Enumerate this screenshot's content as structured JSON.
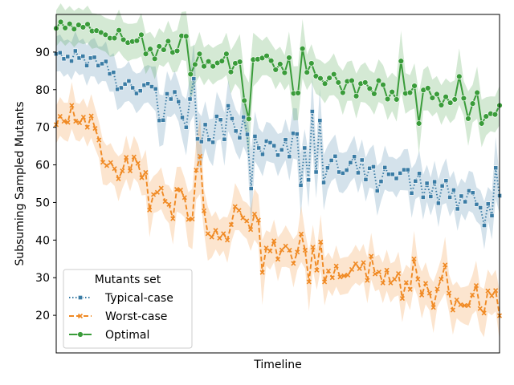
{
  "chart_data": {
    "type": "line",
    "title": "",
    "xlabel": "Timeline",
    "ylabel": "Subsuming Sampled Mutants",
    "ylim": [
      10,
      100
    ],
    "yticks": [
      20,
      30,
      40,
      50,
      60,
      70,
      80,
      90
    ],
    "xticks_shown": false,
    "legend": {
      "title": "Mutants set",
      "placement": "lower-left",
      "entries": [
        "Typical-case",
        "Worst-case",
        "Optimal"
      ]
    },
    "series": [
      {
        "name": "Typical-case",
        "color": "#3a7ca5",
        "linestyle": "dotted",
        "marker": "square",
        "values": [
          89.5,
          89.8,
          88.2,
          88.8,
          87.6,
          90.3,
          88.4,
          88.9,
          86.4,
          88.4,
          88.6,
          86.4,
          86.9,
          87.5,
          84.2,
          84.6,
          80.1,
          80.5,
          81.5,
          82.3,
          80.5,
          79.0,
          79.7,
          81.2,
          81.6,
          80.8,
          80.2,
          71.8,
          71.9,
          78.9,
          77.5,
          79.4,
          76.8,
          72.6,
          70.0,
          77.5,
          82.9,
          66.9,
          66.2,
          70.7,
          66.7,
          66.0,
          72.9,
          72.0,
          66.8,
          75.7,
          72.3,
          69.0,
          67.2,
          72.7,
          68.1,
          53.7,
          67.6,
          64.5,
          62.8,
          66.3,
          65.9,
          65.1,
          62.6,
          64.0,
          66.7,
          62.2,
          68.4,
          68.2,
          54.6,
          64.5,
          56.0,
          74.2,
          58.1,
          71.8,
          55.3,
          59.2,
          61.2,
          62.3,
          58.1,
          57.8,
          58.6,
          60.6,
          62.2,
          57.9,
          61.3,
          56.1,
          59.1,
          59.5,
          53.1,
          55.6,
          59.3,
          57.5,
          57.5,
          56.4,
          57.8,
          58.7,
          58.7,
          52.5,
          55.7,
          57.7,
          51.4,
          55.1,
          51.6,
          55.5,
          49.8,
          54.4,
          55.8,
          51.4,
          53.3,
          48.3,
          51.7,
          50.2,
          53.1,
          52.6,
          49.5,
          48.6,
          43.9,
          49.6,
          46.5,
          59.2,
          51.8
        ]
      },
      {
        "name": "Worst-case",
        "color": "#f08a24",
        "linestyle": "dashed",
        "marker": "x",
        "values": [
          70.7,
          72.9,
          71.6,
          71.3,
          75.8,
          71.6,
          71.2,
          72.7,
          70.0,
          73.0,
          69.7,
          66.6,
          60.7,
          59.8,
          60.6,
          59.0,
          56.3,
          58.4,
          62.0,
          58.4,
          62.1,
          60.4,
          56.6,
          58.0,
          48.0,
          52.1,
          52.7,
          53.8,
          50.3,
          49.5,
          45.7,
          53.5,
          53.3,
          51.3,
          45.5,
          45.6,
          58.6,
          62.3,
          47.8,
          41.7,
          40.8,
          42.6,
          40.5,
          41.7,
          40.0,
          44.1,
          48.9,
          47.9,
          45.9,
          45.1,
          42.8,
          46.9,
          45.3,
          31.4,
          37.9,
          37.1,
          39.8,
          34.9,
          37.4,
          38.4,
          37.3,
          33.8,
          36.8,
          41.6,
          37.3,
          28.9,
          38.1,
          32.0,
          39.5,
          28.9,
          31.8,
          30.0,
          33.1,
          30.2,
          30.5,
          30.7,
          32.2,
          33.7,
          32.4,
          34.0,
          29.3,
          35.7,
          31.0,
          31.5,
          28.6,
          32.0,
          28.6,
          29.6,
          31.1,
          24.5,
          28.7,
          26.9,
          35.0,
          29.6,
          25.4,
          28.5,
          25.9,
          22.1,
          27.0,
          29.6,
          33.4,
          25.9,
          21.4,
          24.1,
          22.8,
          22.6,
          22.6,
          25.4,
          27.9,
          21.8,
          20.6,
          26.5,
          25.2,
          26.6,
          19.9
        ]
      },
      {
        "name": "Optimal",
        "color": "#3a9c3a",
        "linestyle": "solid",
        "marker": "circle",
        "values": [
          96.3,
          98.0,
          96.4,
          97.5,
          96.1,
          97.2,
          96.6,
          97.4,
          95.6,
          95.7,
          95.2,
          94.6,
          93.7,
          93.7,
          95.8,
          93.3,
          92.5,
          92.8,
          93.0,
          94.6,
          89.5,
          90.8,
          88.2,
          91.5,
          90.6,
          92.9,
          89.9,
          90.3,
          94.3,
          94.2,
          84.1,
          86.7,
          89.5,
          86.2,
          87.5,
          86.2,
          87.1,
          87.6,
          89.5,
          84.7,
          87.0,
          87.4,
          77.1,
          72.2,
          88.0,
          88.1,
          88.4,
          89.0,
          87.7,
          85.3,
          86.8,
          84.5,
          88.5,
          79.0,
          79.1,
          90.9,
          84.6,
          87.0,
          83.6,
          83.0,
          81.6,
          83.1,
          84.1,
          81.9,
          79.2,
          82.2,
          82.4,
          78.3,
          81.6,
          81.9,
          80.3,
          78.9,
          82.4,
          81.3,
          77.5,
          79.4,
          77.4,
          87.6,
          79.0,
          79.2,
          81.0,
          71.0,
          79.9,
          80.4,
          77.8,
          78.8,
          75.9,
          78.1,
          76.5,
          77.4,
          83.5,
          77.7,
          72.3,
          76.3,
          79.2,
          71.0,
          72.9,
          73.6,
          73.4,
          75.8
        ]
      }
    ]
  }
}
